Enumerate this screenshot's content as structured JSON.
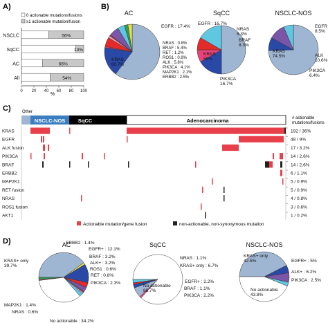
{
  "panels": {
    "A": "A)",
    "B": "B)",
    "C": "C)",
    "D": "D)"
  },
  "colors": {
    "KRAS": "#9fb6d2",
    "EGFR": "#2a49a6",
    "NRAS": "#e8447a",
    "BRAF": "#e52a2a",
    "RET": "#f2a9c8",
    "ROS1": "#b03a4a",
    "ALK": "#7a55a8",
    "PIK3CA": "#60c7e0",
    "MAP2K1": "#2f9e5a",
    "ERBB2": "#e8e047",
    "none": "#ffffff",
    "actionable": "#e8404a",
    "nonactionable": "#222222",
    "gray_bar": "#c8c8c8"
  },
  "chart_data": [
    {
      "id": "A",
      "type": "bar",
      "orientation": "horizontal",
      "stacked": true,
      "legend": [
        "0 actionable mutations/fusions",
        "≥1 actionable mutation/fusion"
      ],
      "categories": [
        "NSCLC",
        "SqCC",
        "AC",
        "All"
      ],
      "series": [
        {
          "name": "0 actionable mutations/fusions",
          "values": [
            44,
            87,
            34,
            46
          ]
        },
        {
          "name": "≥1 actionable mutation/fusion",
          "values": [
            56,
            13,
            66,
            54
          ]
        }
      ],
      "data_labels": [
        "56%",
        "13%",
        "66%",
        "54%"
      ],
      "xlim": [
        0,
        100
      ],
      "xticks": [
        "0",
        "20",
        "40",
        "60",
        "80",
        "100"
      ],
      "xlabel": "%"
    },
    {
      "id": "B",
      "type": "pie",
      "charts": [
        {
          "title": "AC",
          "slices": [
            {
              "key": "KRAS",
              "label": "KRAS\n60.7%",
              "value": 60.7
            },
            {
              "key": "EGFR",
              "label": "EGFR : 17.4%",
              "value": 17.4
            },
            {
              "key": "NRAS",
              "label": "NRAS : 0.8%",
              "value": 0.8
            },
            {
              "key": "BRAF",
              "label": "BRAF : 5.4%",
              "value": 5.4
            },
            {
              "key": "RET",
              "label": "RET : 1.2%",
              "value": 1.2
            },
            {
              "key": "ROS1",
              "label": "ROS1 : 0.8%",
              "value": 0.8
            },
            {
              "key": "ALK",
              "label": "ALK : 5.8%",
              "value": 5.8
            },
            {
              "key": "PIK3CA",
              "label": "PIK3CA : 4.1%",
              "value": 4.1
            },
            {
              "key": "MAP2K1",
              "label": "MAP2K1 : 2.1%",
              "value": 2.1
            },
            {
              "key": "ERBB2",
              "label": "ERBB2 : 2.5%",
              "value": 2.5
            }
          ]
        },
        {
          "title": "SqCC",
          "slices": [
            {
              "key": "KRAS",
              "label": "KRAS\n50%",
              "value": 50
            },
            {
              "key": "EGFR",
              "label": "EGFR : 16.7%",
              "value": 16.7
            },
            {
              "key": "NRAS",
              "label": "NRAS\n8.3%",
              "value": 8.3
            },
            {
              "key": "BRAF",
              "label": "BRAF\n8.3%",
              "value": 8.3
            },
            {
              "key": "PIK3CA",
              "label": "PIK3CA\n16.7%",
              "value": 16.7
            }
          ]
        },
        {
          "title": "NSCLC-NOS",
          "slices": [
            {
              "key": "KRAS",
              "label": "KRAS\n74.5%",
              "value": 74.5
            },
            {
              "key": "EGFR",
              "label": "EGFR\n8.5%",
              "value": 8.5
            },
            {
              "key": "ALK",
              "label": "ALK\n10.6%",
              "value": 10.6
            },
            {
              "key": "PIK3CA",
              "label": "PIK3CA\n6.4%",
              "value": 6.4
            }
          ]
        }
      ]
    },
    {
      "id": "C",
      "type": "heatmap",
      "header_groups": [
        "Other",
        "NSCLC-NOS",
        "SqCC",
        "Adenocarcinoma"
      ],
      "right_header": "# actionable\nmutations/fusions",
      "genes": [
        "KRAS",
        "EGFR",
        "ALK fusion",
        "PIK3CA",
        "BRAF",
        "ERBB2",
        "MAP2K1",
        "RET fusion",
        "NRAS",
        "ROS1 fusion",
        "AKT1"
      ],
      "counts": [
        "192 / 36%",
        "48 / 9%",
        "17 / 3.2%",
        "14 / 2.6%",
        "14 / 2.6%",
        "6 / 1.1%",
        "5 / 0.9%",
        "5 / 0.9%",
        "4 / 0.8%",
        "3 / 0.6%",
        "1 / 0.2%"
      ],
      "legend": [
        "Actionable mutation/gene fusion",
        "non-actionable, non-synonymous mutation"
      ]
    },
    {
      "id": "D",
      "type": "pie",
      "charts": [
        {
          "title": "AC",
          "slices": [
            {
              "key": "KRAS",
              "label": "KRAS+ only\n39.7%",
              "value": 39.7
            },
            {
              "key": "ERBB2",
              "label": "ERBB2 : 1.4%",
              "value": 1.4
            },
            {
              "key": "EGFR",
              "label": "EGFR+ : 12.1%",
              "value": 12.1
            },
            {
              "key": "BRAF",
              "label": "BRAF : 3.2%",
              "value": 3.2
            },
            {
              "key": "ALK",
              "label": "ALK+ : 3.2%",
              "value": 3.2
            },
            {
              "key": "ROS1",
              "label": "ROS1 : 0.6%",
              "value": 0.6
            },
            {
              "key": "RET",
              "label": "RET : 0.8%",
              "value": 0.8
            },
            {
              "key": "PIK3CA",
              "label": "PIK3CA : 2.3%",
              "value": 2.3
            },
            {
              "key": "none",
              "label": "No actionable : 34.2%",
              "value": 34.2
            },
            {
              "key": "NRAS",
              "label": "NRAS : 0.6%",
              "value": 0.6
            },
            {
              "key": "MAP2K1",
              "label": "MAP2K1 : 1.4%",
              "value": 1.4
            }
          ]
        },
        {
          "title": "SqCC",
          "slices": [
            {
              "key": "none",
              "label": "No actionable\n86.7%",
              "value": 86.7
            },
            {
              "key": "NRAS",
              "label": "NRAS : 1.1%",
              "value": 1.1
            },
            {
              "key": "KRAS",
              "label": "KRAS+ only : 6.7%",
              "value": 6.7
            },
            {
              "key": "EGFR",
              "label": "EGFR+ : 2.2%",
              "value": 2.2
            },
            {
              "key": "BRAF",
              "label": "BRAF : 1.1%",
              "value": 1.1
            },
            {
              "key": "PIK3CA",
              "label": "PIK3CA : 2.2%",
              "value": 2.2
            }
          ]
        },
        {
          "title": "NSCLC-NOS",
          "slices": [
            {
              "key": "KRAS",
              "label": "KRAS+ only\n42.5%",
              "value": 42.5
            },
            {
              "key": "EGFR",
              "label": "EGFR+ : 5%",
              "value": 5
            },
            {
              "key": "ALK",
              "label": "ALK+ : 6.2%",
              "value": 6.2
            },
            {
              "key": "PIK3CA",
              "label": "PIK3CA : 2.5%",
              "value": 2.5
            },
            {
              "key": "none",
              "label": "No actionable\n43.8%",
              "value": 43.8
            }
          ]
        }
      ]
    }
  ]
}
